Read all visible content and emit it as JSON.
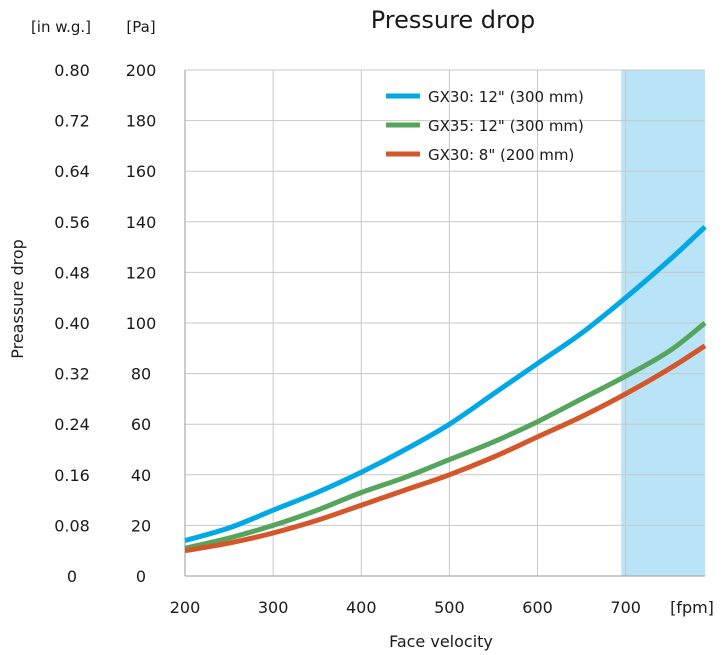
{
  "chart_data": {
    "type": "line",
    "title": "Pressure drop",
    "xlabel": "Face velocity",
    "ylabel": "Preassure drop",
    "x_unit": "[fpm]",
    "y_unit_left": "[in w.g.]",
    "y_unit_right": "[Pa]",
    "xlim": [
      200,
      790
    ],
    "ylim": [
      0,
      200
    ],
    "x_ticks": [
      200,
      300,
      400,
      500,
      600,
      700
    ],
    "y_ticks_pa": [
      0,
      20,
      40,
      60,
      80,
      100,
      120,
      140,
      160,
      180,
      200
    ],
    "y_ticks_inwg": [
      "0.08",
      "0.16",
      "0.24",
      "0.32",
      "0.40",
      "0.48",
      "0.56",
      "0.64",
      "0.72",
      "0.80"
    ],
    "highlight_region": {
      "x_from": 695,
      "x_to": 790,
      "color": "#b9e3f6"
    },
    "grid": true,
    "legend_position": "top-right",
    "series": [
      {
        "name": "GX30: 12\" (300 mm)",
        "color": "#00a9e5",
        "x": [
          200,
          250,
          300,
          350,
          400,
          450,
          500,
          550,
          600,
          650,
          700,
          750,
          790
        ],
        "y": [
          14,
          19,
          26,
          33,
          41,
          50,
          60,
          72,
          84,
          96,
          110,
          125,
          138
        ]
      },
      {
        "name": "GX35: 12\" (300 mm)",
        "color": "#55a65c",
        "x": [
          200,
          250,
          300,
          350,
          400,
          450,
          500,
          550,
          600,
          650,
          700,
          750,
          790
        ],
        "y": [
          11,
          15,
          20,
          26,
          33,
          39,
          46,
          53,
          61,
          70,
          79,
          89,
          100
        ]
      },
      {
        "name": "GX30: 8\" (200 mm)",
        "color": "#d4572b",
        "x": [
          200,
          250,
          300,
          350,
          400,
          450,
          500,
          550,
          600,
          650,
          700,
          750,
          790
        ],
        "y": [
          10,
          13,
          17,
          22,
          28,
          34,
          40,
          47,
          55,
          63,
          72,
          82,
          91
        ]
      }
    ]
  }
}
